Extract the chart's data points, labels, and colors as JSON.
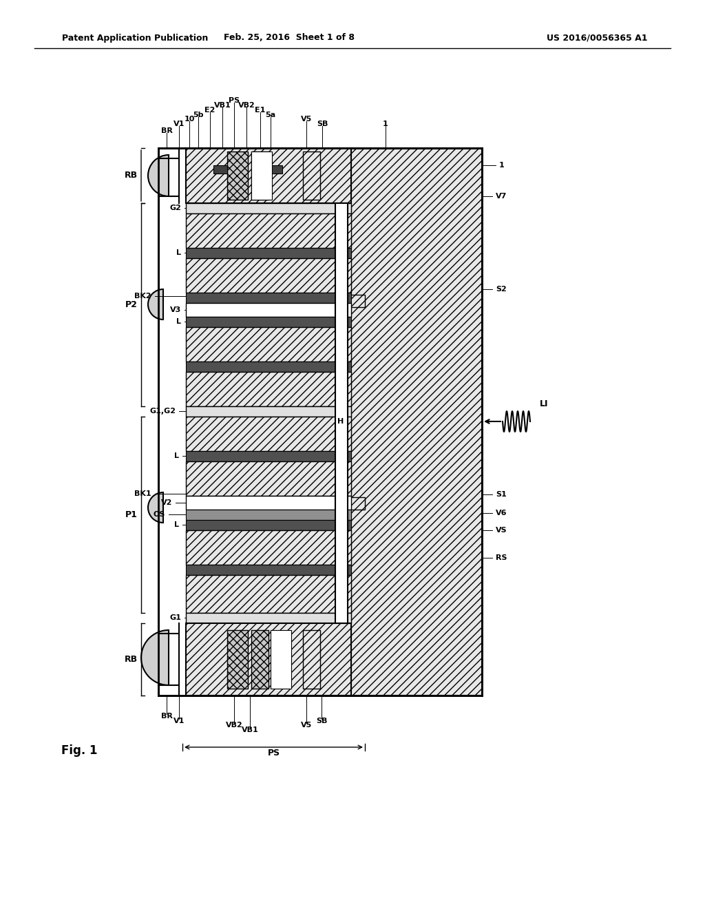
{
  "title_left": "Patent Application Publication",
  "title_center": "Feb. 25, 2016  Sheet 1 of 8",
  "title_right": "US 2016/0056365 A1",
  "fig_label": "Fig. 1",
  "background_color": "#ffffff",
  "line_color": "#000000",
  "hatch_color": "#000000",
  "hatch_pattern": "/",
  "hatch_pattern2": "x",
  "top_labels": [
    "BR",
    "V1",
    "10",
    "5b",
    "E2",
    "VB1",
    "PS",
    "VB2",
    "E1",
    "5a",
    "V5",
    "SB",
    "1"
  ],
  "bottom_labels": [
    "BR",
    "V1",
    "VB2",
    "VB1",
    "V5",
    "SB"
  ],
  "left_labels": [
    "RB",
    "P2",
    "P1",
    "RB"
  ],
  "right_labels": [
    "V7",
    "S2",
    "S1",
    "V6",
    "VS",
    "RS"
  ],
  "inner_left_labels": [
    "G2",
    "L",
    "BK2",
    "V3",
    "L",
    "G1,G2",
    "L",
    "V2",
    "BK1",
    "OS",
    "L",
    "G1"
  ],
  "inner_right_label": "H",
  "bottom_brace_label": "PS",
  "li_label": "LI"
}
